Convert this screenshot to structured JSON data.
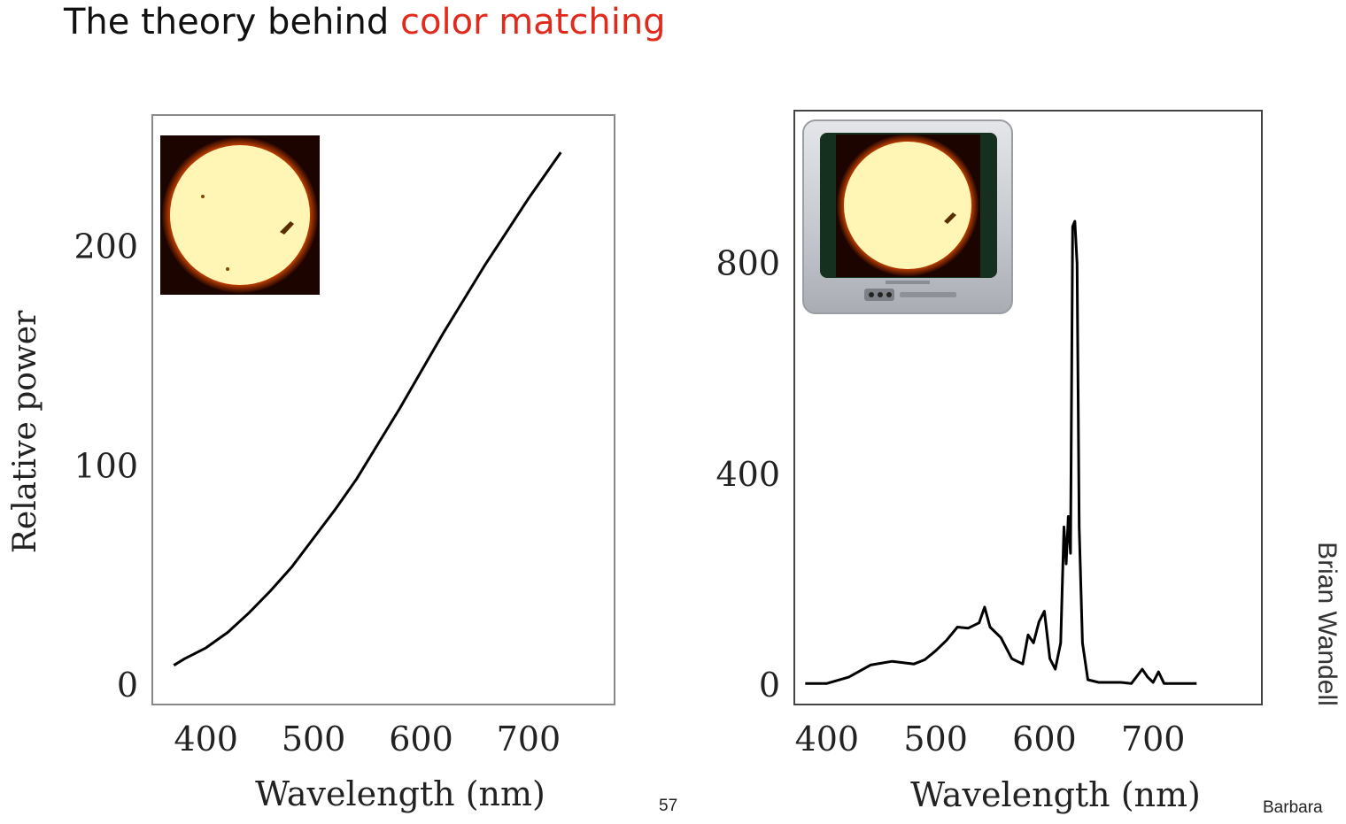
{
  "slide": {
    "title_prefix": "The theory behind ",
    "title_highlight": "color matching",
    "credit": "Brian Wandell",
    "page_number": "57",
    "footer_right": "Barbara"
  },
  "colors": {
    "title": "#111111",
    "title_highlight": "#e02a1c",
    "curve": "#000000",
    "frame": "#888888"
  },
  "icons": {
    "left_chart": "sun-image",
    "right_chart": "crt-television-showing-sun"
  },
  "chart_data": [
    {
      "type": "line",
      "title": "",
      "xlabel": "Wavelength (nm)",
      "ylabel": "Relative power",
      "xticks": [
        400,
        500,
        600,
        700
      ],
      "yticks": [
        0,
        100,
        200
      ],
      "xlim": [
        350,
        780
      ],
      "ylim": [
        0,
        260
      ],
      "grid": false,
      "x": [
        370,
        380,
        400,
        420,
        440,
        460,
        480,
        500,
        520,
        540,
        560,
        580,
        600,
        620,
        640,
        660,
        680,
        700,
        720,
        730
      ],
      "y": [
        9,
        12,
        17,
        24,
        33,
        43,
        54,
        67,
        80,
        94,
        110,
        126,
        143,
        160,
        176,
        192,
        207,
        222,
        236,
        243
      ]
    },
    {
      "type": "line",
      "title": "",
      "xlabel": "Wavelength (nm)",
      "ylabel": "",
      "xticks": [
        400,
        500,
        600,
        700
      ],
      "yticks": [
        0,
        400,
        800
      ],
      "xlim": [
        370,
        800
      ],
      "ylim": [
        0,
        1090
      ],
      "grid": false,
      "x": [
        380,
        400,
        420,
        440,
        460,
        480,
        490,
        500,
        510,
        520,
        530,
        540,
        545,
        550,
        560,
        570,
        580,
        585,
        590,
        595,
        600,
        605,
        610,
        615,
        618,
        620,
        622,
        624,
        626,
        628,
        630,
        632,
        635,
        640,
        650,
        660,
        670,
        680,
        690,
        695,
        700,
        705,
        710,
        720,
        740
      ],
      "y": [
        3,
        3,
        15,
        38,
        45,
        40,
        48,
        65,
        85,
        110,
        108,
        118,
        148,
        110,
        90,
        50,
        40,
        95,
        80,
        120,
        140,
        50,
        30,
        80,
        300,
        230,
        320,
        250,
        870,
        880,
        800,
        300,
        80,
        10,
        5,
        5,
        5,
        3,
        30,
        15,
        5,
        25,
        3,
        3,
        3
      ]
    }
  ]
}
